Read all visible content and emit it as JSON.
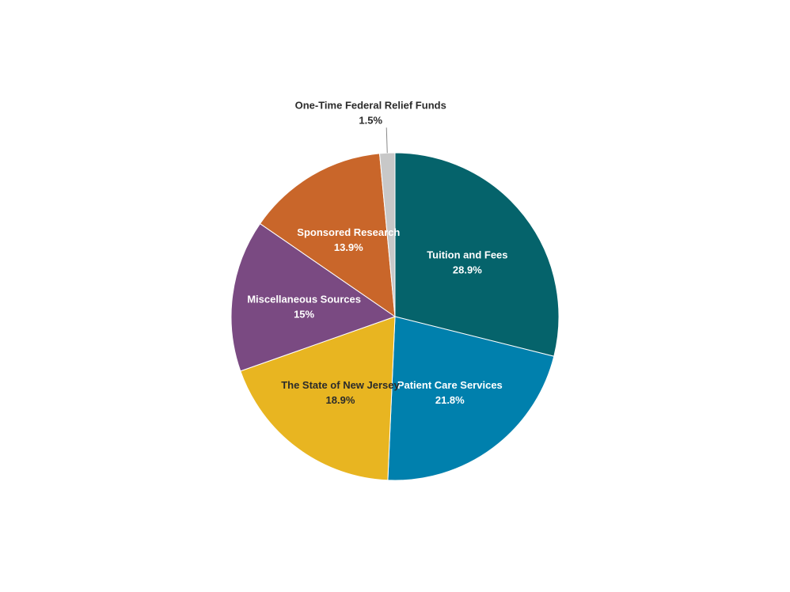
{
  "chart_data": {
    "type": "pie",
    "title": "",
    "slices": [
      {
        "label": "Tuition and Fees",
        "value": 28.9,
        "value_label": "28.9%",
        "color": "#05636b",
        "text": "light"
      },
      {
        "label": "Patient Care Services",
        "value": 21.8,
        "value_label": "21.8%",
        "color": "#0080ad",
        "text": "light"
      },
      {
        "label": "The State of New Jersey",
        "value": 18.9,
        "value_label": "18.9%",
        "color": "#e8b521",
        "text": "dark"
      },
      {
        "label": "Miscellaneous Sources",
        "value": 15,
        "value_label": "15%",
        "color": "#7a4a82",
        "text": "light"
      },
      {
        "label": "Sponsored Research",
        "value": 13.9,
        "value_label": "13.9%",
        "color": "#c9662a",
        "text": "light"
      },
      {
        "label": "One-Time Federal Relief Funds",
        "value": 1.5,
        "value_label": "1.5%",
        "color": "#c8c8c8",
        "text": "dark",
        "label_outside": true
      }
    ],
    "start_angle": "12 o'clock",
    "direction": "clockwise",
    "legend": "none"
  }
}
